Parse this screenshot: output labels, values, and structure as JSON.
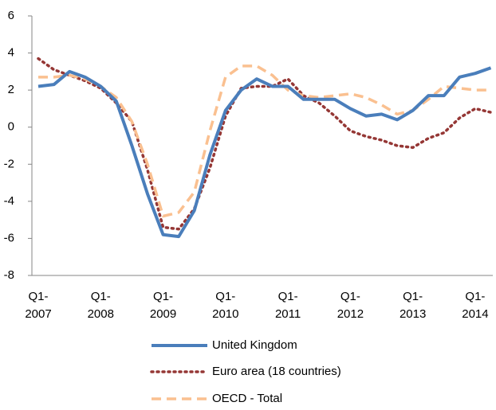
{
  "chart_data": {
    "type": "line",
    "categories": [
      "Q1-\n2007",
      null,
      null,
      null,
      "Q1-\n2008",
      null,
      null,
      null,
      "Q1-\n2009",
      null,
      null,
      null,
      "Q1-\n2010",
      null,
      null,
      null,
      "Q1-\n2011",
      null,
      null,
      null,
      "Q1-\n2012",
      null,
      null,
      null,
      "Q1-\n2013",
      null,
      null,
      null,
      "Q1-\n2014",
      null
    ],
    "series": [
      {
        "name": "United Kingdom",
        "color": "#4a7ebb",
        "style": "solid",
        "values": [
          2.2,
          2.3,
          3.0,
          2.7,
          2.2,
          1.4,
          -1.0,
          -3.6,
          -5.8,
          -5.9,
          -4.5,
          -1.5,
          0.9,
          2.0,
          2.6,
          2.2,
          2.2,
          1.5,
          1.5,
          1.5,
          1.0,
          0.6,
          0.7,
          0.4,
          0.9,
          1.7,
          1.7,
          2.7,
          2.9,
          3.2
        ]
      },
      {
        "name": "Euro area (18 countries)",
        "color": "#953735",
        "style": "dotted",
        "values": [
          3.7,
          3.1,
          2.8,
          2.5,
          2.1,
          1.3,
          0.3,
          -2.3,
          -5.4,
          -5.5,
          -4.4,
          -2.2,
          0.6,
          2.1,
          2.2,
          2.2,
          2.6,
          1.7,
          1.3,
          0.6,
          -0.2,
          -0.5,
          -0.7,
          -1.0,
          -1.1,
          -0.6,
          -0.3,
          0.5,
          1.0,
          0.8
        ]
      },
      {
        "name": "OECD - Total",
        "color": "#fac090",
        "style": "dashed",
        "values": [
          2.7,
          2.7,
          2.8,
          2.6,
          2.2,
          1.6,
          0.3,
          -2.0,
          -4.8,
          -4.6,
          -3.5,
          -0.2,
          2.7,
          3.3,
          3.3,
          2.8,
          2.0,
          1.7,
          1.6,
          1.7,
          1.8,
          1.6,
          1.2,
          0.7,
          0.9,
          1.5,
          2.2,
          2.1,
          2.0,
          2.0
        ]
      }
    ],
    "ylim": [
      -8,
      6
    ],
    "yticks": [
      -8,
      -6,
      -4,
      -2,
      0,
      2,
      4,
      6
    ],
    "grid": false,
    "legend": "bottom"
  }
}
